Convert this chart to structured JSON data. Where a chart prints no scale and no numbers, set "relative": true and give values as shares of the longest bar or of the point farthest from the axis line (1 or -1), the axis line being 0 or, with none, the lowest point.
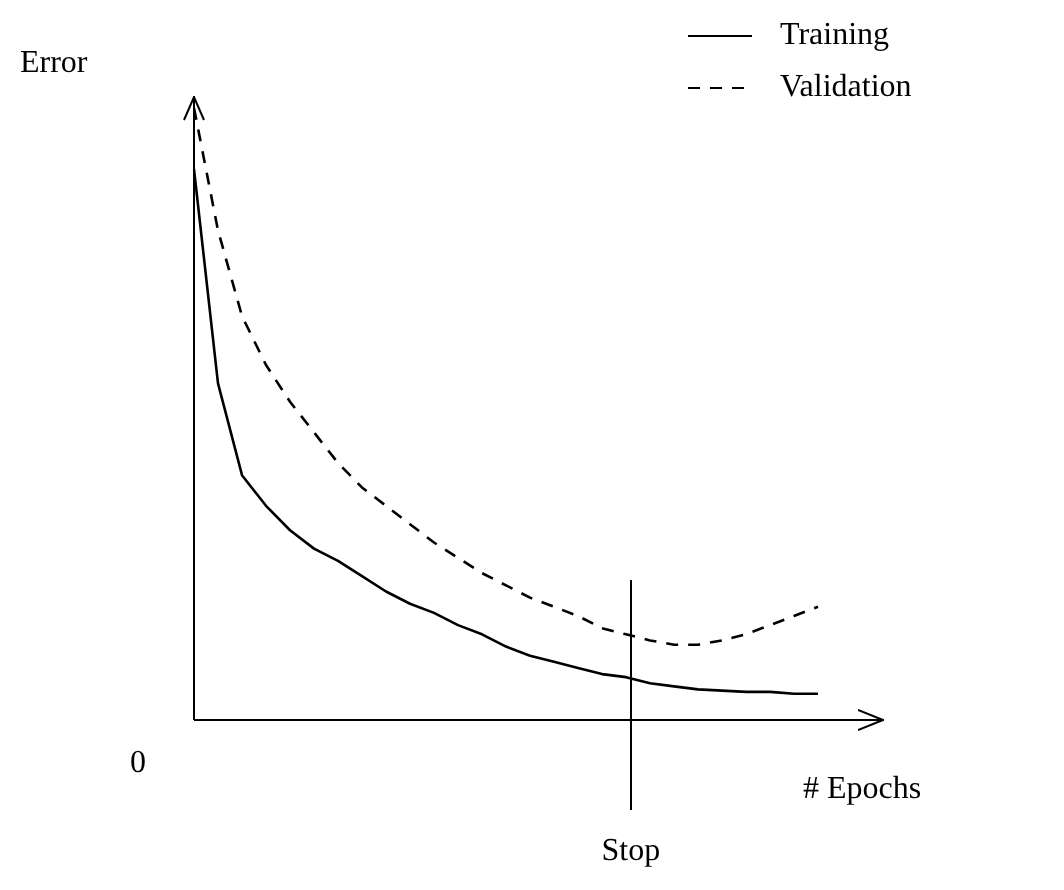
{
  "chart_data": {
    "type": "line",
    "relative": true,
    "xlabel": "# Epochs",
    "ylabel": "Error",
    "annotations": [
      "0",
      "Stop"
    ],
    "categories": [
      null,
      null,
      null,
      null,
      null,
      null,
      null,
      null,
      null,
      null,
      null,
      null,
      null,
      null,
      null,
      null,
      null,
      null,
      null,
      null,
      null,
      null,
      null,
      null,
      null,
      null,
      null
    ],
    "series": [
      {
        "name": "Training",
        "color": "#000000",
        "line_style": "solid",
        "values": [
          0.9,
          0.55,
          0.4,
          0.35,
          0.31,
          0.28,
          0.26,
          0.235,
          0.21,
          0.19,
          0.175,
          0.155,
          0.14,
          0.12,
          0.105,
          0.095,
          0.085,
          0.075,
          0.07,
          0.06,
          0.055,
          0.05,
          0.048,
          0.046,
          0.046,
          0.043,
          0.043
        ]
      },
      {
        "name": "Validation",
        "color": "#000000",
        "line_style": "dashed",
        "values": [
          1.0,
          0.8,
          0.66,
          0.58,
          0.52,
          0.47,
          0.42,
          0.38,
          0.35,
          0.32,
          0.29,
          0.265,
          0.24,
          0.22,
          0.2,
          0.185,
          0.17,
          0.15,
          0.14,
          0.13,
          0.123,
          0.123,
          0.13,
          0.14,
          0.155,
          0.17,
          0.185
        ]
      }
    ],
    "legend": "top right",
    "marker": "none"
  }
}
